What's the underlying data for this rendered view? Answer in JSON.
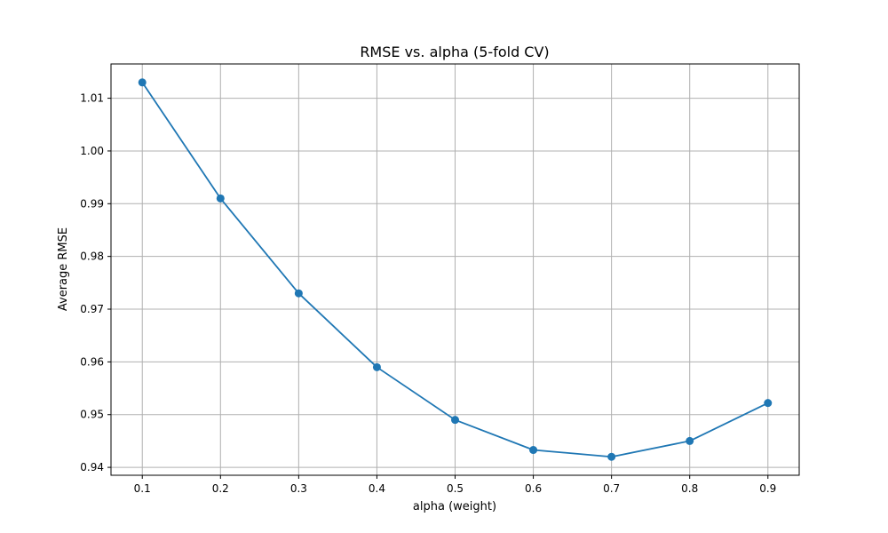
{
  "chart_data": {
    "type": "line",
    "title": "RMSE vs. alpha (5-fold CV)",
    "xlabel": "alpha (weight)",
    "ylabel": "Average RMSE",
    "x": [
      0.1,
      0.2,
      0.3,
      0.4,
      0.5,
      0.6,
      0.7,
      0.8,
      0.9
    ],
    "y": [
      1.013,
      0.991,
      0.973,
      0.959,
      0.949,
      0.9433,
      0.942,
      0.945,
      0.9522
    ],
    "xlim": [
      0.06,
      0.94
    ],
    "ylim": [
      0.9385,
      1.0165
    ],
    "xticks": [
      0.1,
      0.2,
      0.3,
      0.4,
      0.5,
      0.6,
      0.7,
      0.8,
      0.9
    ],
    "xtick_labels": [
      "0.1",
      "0.2",
      "0.3",
      "0.4",
      "0.5",
      "0.6",
      "0.7",
      "0.8",
      "0.9"
    ],
    "yticks": [
      0.94,
      0.95,
      0.96,
      0.97,
      0.98,
      0.99,
      1.0,
      1.01
    ],
    "ytick_labels": [
      "0.94",
      "0.95",
      "0.96",
      "0.97",
      "0.98",
      "0.99",
      "1.00",
      "1.01"
    ],
    "grid": true,
    "marker": "circle",
    "line_color": "#1f77b4",
    "grid_color": "#b0b0b0"
  }
}
